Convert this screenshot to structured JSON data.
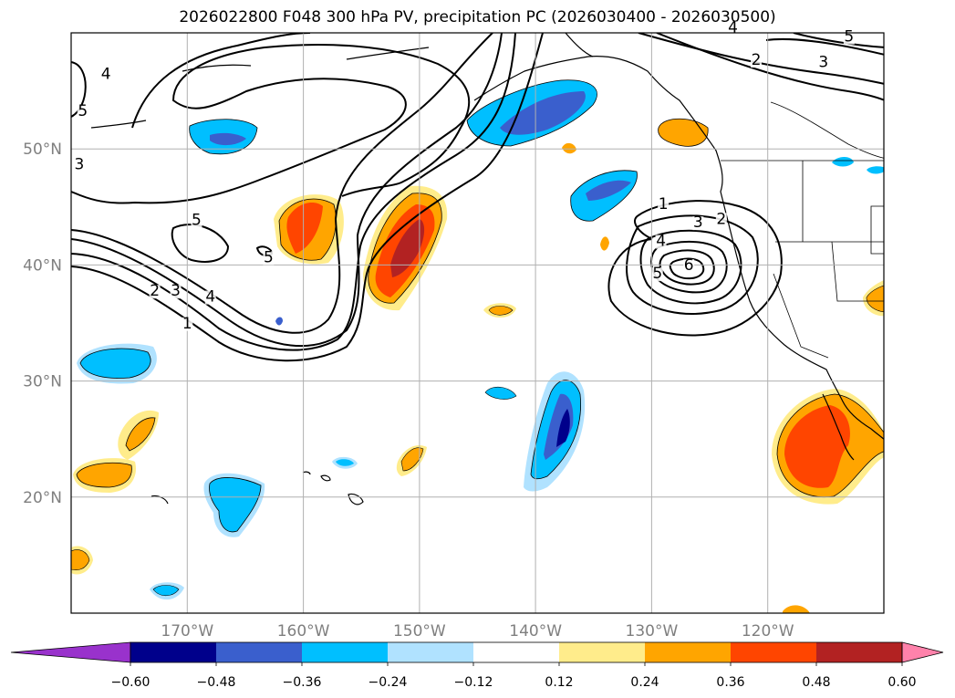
{
  "title": "2026022800 F048 300 hPa PV, precipitation PC (2026030400 - 2026030500)",
  "map": {
    "projection": "lat-lon",
    "lon_range": [
      -180,
      -110
    ],
    "lat_range": [
      10,
      60
    ],
    "gridlines": true,
    "lat_labels": [
      {
        "lat": 50,
        "text": "50°N"
      },
      {
        "lat": 40,
        "text": "40°N"
      },
      {
        "lat": 30,
        "text": "30°N"
      },
      {
        "lat": 20,
        "text": "20°N"
      }
    ],
    "lon_labels": [
      {
        "lon": -170,
        "text": "170°W"
      },
      {
        "lon": -160,
        "text": "160°W"
      },
      {
        "lon": -150,
        "text": "150°W"
      },
      {
        "lon": -140,
        "text": "140°W"
      },
      {
        "lon": -130,
        "text": "130°W"
      },
      {
        "lon": -120,
        "text": "120°W"
      }
    ],
    "pv_contour_labels": [
      {
        "text": "4",
        "lon": -177,
        "lat": 56.2
      },
      {
        "text": "5",
        "lon": -179,
        "lat": 53
      },
      {
        "text": "3",
        "lon": -179.3,
        "lat": 48.4
      },
      {
        "text": "5",
        "lon": -169.2,
        "lat": 43.6
      },
      {
        "text": "5",
        "lon": -163,
        "lat": 40.4
      },
      {
        "text": "2",
        "lon": -172.8,
        "lat": 37.5
      },
      {
        "text": "3",
        "lon": -171,
        "lat": 37.5
      },
      {
        "text": "4",
        "lon": -168,
        "lat": 37
      },
      {
        "text": "1",
        "lon": -170,
        "lat": 34.7
      },
      {
        "text": "1",
        "lon": -129,
        "lat": 45
      },
      {
        "text": "3",
        "lon": -126,
        "lat": 43.4
      },
      {
        "text": "2",
        "lon": -124,
        "lat": 43.7
      },
      {
        "text": "4",
        "lon": -129.2,
        "lat": 41.8
      },
      {
        "text": "5",
        "lon": -129.5,
        "lat": 39
      },
      {
        "text": "6",
        "lon": -126.8,
        "lat": 39.7
      },
      {
        "text": "4",
        "lon": -123,
        "lat": 60.2
      },
      {
        "text": "5",
        "lon": -113,
        "lat": 59.4
      },
      {
        "text": "2",
        "lon": -121,
        "lat": 57.4
      },
      {
        "text": "3",
        "lon": -115.2,
        "lat": 57.2
      }
    ]
  },
  "colorbar": {
    "extend": "both",
    "levels": [
      "−0.60",
      "−0.48",
      "−0.36",
      "−0.24",
      "−0.12",
      "0.12",
      "0.24",
      "0.36",
      "0.48",
      "0.60"
    ],
    "colors": [
      "#9932cc",
      "#00008b",
      "#3a5fcd",
      "#00bfff",
      "#b0e2ff",
      "#ffffff",
      "#ffec8b",
      "#ffa500",
      "#ff4500",
      "#b22222",
      "#ff82ab"
    ]
  }
}
